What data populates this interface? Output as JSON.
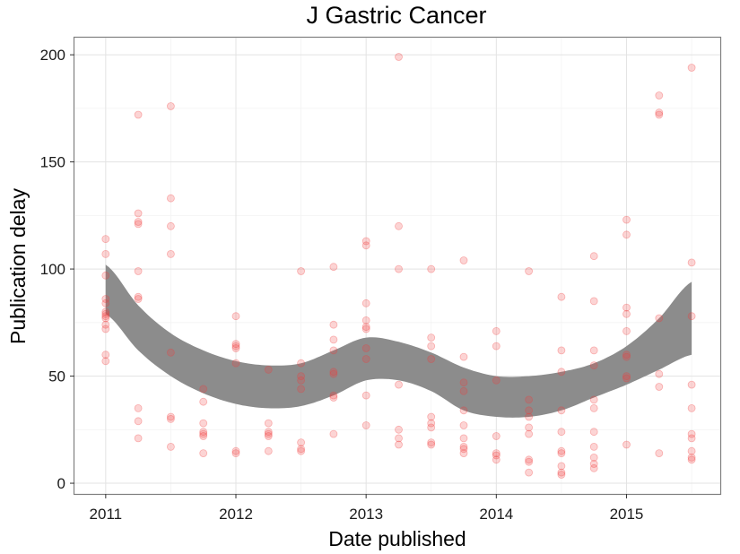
{
  "chart_data": {
    "type": "scatter",
    "title": "J Gastric Cancer",
    "xlabel": "Date published",
    "ylabel": "Publication delay",
    "xlim": [
      2010.76,
      2015.72
    ],
    "ylim": [
      -5,
      208
    ],
    "x_ticks": [
      2011,
      2012,
      2013,
      2014,
      2015
    ],
    "x_tick_labels": [
      "2011",
      "2012",
      "2013",
      "2014",
      "2015"
    ],
    "y_ticks": [
      0,
      50,
      100,
      150,
      200
    ],
    "y_tick_labels": [
      "0",
      "50",
      "100",
      "150",
      "200"
    ],
    "grid": true,
    "point_color": "#f23b3b",
    "band_color": "#8c8c8c",
    "points": [
      [
        2011.0,
        114
      ],
      [
        2011.0,
        107
      ],
      [
        2011.0,
        97
      ],
      [
        2011.0,
        86
      ],
      [
        2011.0,
        84
      ],
      [
        2011.0,
        80
      ],
      [
        2011.0,
        79
      ],
      [
        2011.0,
        78
      ],
      [
        2011.0,
        77
      ],
      [
        2011.0,
        74
      ],
      [
        2011.0,
        72
      ],
      [
        2011.0,
        60
      ],
      [
        2011.0,
        57
      ],
      [
        2011.25,
        172
      ],
      [
        2011.25,
        126
      ],
      [
        2011.25,
        122
      ],
      [
        2011.25,
        121
      ],
      [
        2011.25,
        99
      ],
      [
        2011.25,
        87
      ],
      [
        2011.25,
        86
      ],
      [
        2011.25,
        35
      ],
      [
        2011.25,
        29
      ],
      [
        2011.25,
        21
      ],
      [
        2011.5,
        176
      ],
      [
        2011.5,
        133
      ],
      [
        2011.5,
        120
      ],
      [
        2011.5,
        107
      ],
      [
        2011.5,
        61
      ],
      [
        2011.5,
        31
      ],
      [
        2011.5,
        30
      ],
      [
        2011.5,
        17
      ],
      [
        2011.75,
        44
      ],
      [
        2011.75,
        38
      ],
      [
        2011.75,
        28
      ],
      [
        2011.75,
        24
      ],
      [
        2011.75,
        23
      ],
      [
        2011.75,
        22
      ],
      [
        2011.75,
        14
      ],
      [
        2012.0,
        78
      ],
      [
        2012.0,
        65
      ],
      [
        2012.0,
        64
      ],
      [
        2012.0,
        63
      ],
      [
        2012.0,
        56
      ],
      [
        2012.0,
        15
      ],
      [
        2012.0,
        14
      ],
      [
        2012.25,
        53
      ],
      [
        2012.25,
        28
      ],
      [
        2012.25,
        24
      ],
      [
        2012.25,
        23
      ],
      [
        2012.25,
        22
      ],
      [
        2012.25,
        15
      ],
      [
        2012.5,
        99
      ],
      [
        2012.5,
        56
      ],
      [
        2012.5,
        50
      ],
      [
        2012.5,
        48
      ],
      [
        2012.5,
        44
      ],
      [
        2012.5,
        19
      ],
      [
        2012.5,
        16
      ],
      [
        2012.5,
        15
      ],
      [
        2012.75,
        101
      ],
      [
        2012.75,
        74
      ],
      [
        2012.75,
        67
      ],
      [
        2012.75,
        62
      ],
      [
        2012.75,
        52
      ],
      [
        2012.75,
        51
      ],
      [
        2012.75,
        41
      ],
      [
        2012.75,
        40
      ],
      [
        2012.75,
        23
      ],
      [
        2013.0,
        113
      ],
      [
        2013.0,
        111
      ],
      [
        2013.0,
        84
      ],
      [
        2013.0,
        76
      ],
      [
        2013.0,
        73
      ],
      [
        2013.0,
        72
      ],
      [
        2013.0,
        63
      ],
      [
        2013.0,
        58
      ],
      [
        2013.0,
        41
      ],
      [
        2013.0,
        27
      ],
      [
        2013.25,
        199
      ],
      [
        2013.25,
        120
      ],
      [
        2013.25,
        100
      ],
      [
        2013.25,
        46
      ],
      [
        2013.25,
        25
      ],
      [
        2013.25,
        21
      ],
      [
        2013.25,
        18
      ],
      [
        2013.5,
        100
      ],
      [
        2013.5,
        68
      ],
      [
        2013.5,
        64
      ],
      [
        2013.5,
        58
      ],
      [
        2013.5,
        31
      ],
      [
        2013.5,
        28
      ],
      [
        2013.5,
        26
      ],
      [
        2013.5,
        19
      ],
      [
        2013.5,
        18
      ],
      [
        2013.75,
        104
      ],
      [
        2013.75,
        59
      ],
      [
        2013.75,
        47
      ],
      [
        2013.75,
        43
      ],
      [
        2013.75,
        34
      ],
      [
        2013.75,
        27
      ],
      [
        2013.75,
        21
      ],
      [
        2013.75,
        17
      ],
      [
        2013.75,
        16
      ],
      [
        2013.75,
        14
      ],
      [
        2014.0,
        71
      ],
      [
        2014.0,
        64
      ],
      [
        2014.0,
        48
      ],
      [
        2014.0,
        22
      ],
      [
        2014.0,
        14
      ],
      [
        2014.0,
        13
      ],
      [
        2014.0,
        11
      ],
      [
        2014.25,
        99
      ],
      [
        2014.25,
        39
      ],
      [
        2014.25,
        34
      ],
      [
        2014.25,
        31
      ],
      [
        2014.25,
        26
      ],
      [
        2014.25,
        23
      ],
      [
        2014.25,
        11
      ],
      [
        2014.25,
        10
      ],
      [
        2014.25,
        5
      ],
      [
        2014.5,
        87
      ],
      [
        2014.5,
        62
      ],
      [
        2014.5,
        52
      ],
      [
        2014.5,
        34
      ],
      [
        2014.5,
        24
      ],
      [
        2014.5,
        15
      ],
      [
        2014.5,
        14
      ],
      [
        2014.5,
        8
      ],
      [
        2014.5,
        5
      ],
      [
        2014.5,
        4
      ],
      [
        2014.75,
        106
      ],
      [
        2014.75,
        85
      ],
      [
        2014.75,
        62
      ],
      [
        2014.75,
        55
      ],
      [
        2014.75,
        39
      ],
      [
        2014.75,
        35
      ],
      [
        2014.75,
        24
      ],
      [
        2014.75,
        17
      ],
      [
        2014.75,
        12
      ],
      [
        2014.75,
        9
      ],
      [
        2014.75,
        7
      ],
      [
        2015.0,
        123
      ],
      [
        2015.0,
        116
      ],
      [
        2015.0,
        82
      ],
      [
        2015.0,
        79
      ],
      [
        2015.0,
        71
      ],
      [
        2015.0,
        60
      ],
      [
        2015.0,
        59
      ],
      [
        2015.0,
        50
      ],
      [
        2015.0,
        49
      ],
      [
        2015.0,
        18
      ],
      [
        2015.25,
        181
      ],
      [
        2015.25,
        173
      ],
      [
        2015.25,
        172
      ],
      [
        2015.25,
        77
      ],
      [
        2015.25,
        51
      ],
      [
        2015.25,
        45
      ],
      [
        2015.25,
        14
      ],
      [
        2015.5,
        194
      ],
      [
        2015.5,
        103
      ],
      [
        2015.5,
        78
      ],
      [
        2015.5,
        46
      ],
      [
        2015.5,
        35
      ],
      [
        2015.5,
        23
      ],
      [
        2015.5,
        21
      ],
      [
        2015.5,
        15
      ],
      [
        2015.5,
        12
      ],
      [
        2015.5,
        11
      ]
    ],
    "smooth_band": {
      "x": [
        2011.0,
        2011.25,
        2011.5,
        2011.75,
        2012.0,
        2012.25,
        2012.5,
        2012.75,
        2013.0,
        2013.25,
        2013.5,
        2013.75,
        2014.0,
        2014.25,
        2014.5,
        2014.75,
        2015.0,
        2015.25,
        2015.5
      ],
      "upper": [
        102,
        83,
        70,
        62,
        57,
        55,
        56,
        62,
        68,
        66,
        61,
        54,
        50,
        50,
        52,
        56,
        64,
        77,
        94
      ],
      "lower": [
        79,
        62,
        50,
        42,
        37,
        35,
        36,
        41,
        48,
        48,
        43,
        34,
        31,
        31,
        34,
        40,
        46,
        53,
        60
      ]
    }
  }
}
